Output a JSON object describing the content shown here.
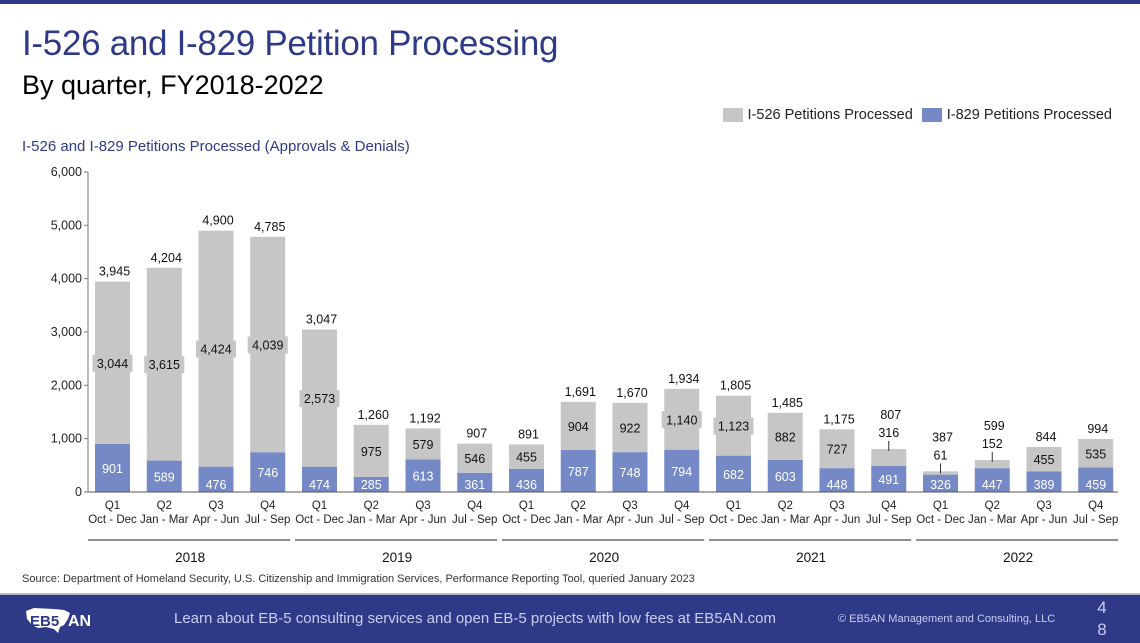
{
  "slide": {
    "title": "I-526 and I-829 Petition Processing",
    "subtitle": "By quarter, FY2018-2022",
    "source": "Source: Department of Homeland Security, U.S. Citizenship and Immigration Services, Performance Reporting Tool, queried January 2023",
    "footer_text": "Learn about EB-5 consulting services and open EB-5 projects with low fees at EB5AN.com",
    "copyright": "© EB5AN Management and Consulting, LLC",
    "logo_text": "EB5AN",
    "page_number_line1": "4",
    "page_number_line2": "8"
  },
  "colors": {
    "brand": "#2e3a87",
    "i526": "#c6c6c6",
    "i829": "#7689c7"
  },
  "chart_data": {
    "type": "bar",
    "stacked": true,
    "title": "I-526 and I-829 Petitions Processed (Approvals & Denials)",
    "xlabel": "",
    "ylabel": "",
    "ylim": [
      0,
      6000
    ],
    "yticks": [
      0,
      1000,
      2000,
      3000,
      4000,
      5000,
      6000
    ],
    "ytick_labels": [
      "0",
      "1,000",
      "2,000",
      "3,000",
      "4,000",
      "5,000",
      "6,000"
    ],
    "grid": false,
    "legend_position": "top-right",
    "quarters": [
      "Q1",
      "Q2",
      "Q3",
      "Q4"
    ],
    "quarter_months": [
      "Oct - Dec",
      "Jan - Mar",
      "Apr - Jun",
      "Jul - Sep"
    ],
    "years": [
      "2018",
      "2019",
      "2020",
      "2021",
      "2022"
    ],
    "categories": [
      "2018 Q1",
      "2018 Q2",
      "2018 Q3",
      "2018 Q4",
      "2019 Q1",
      "2019 Q2",
      "2019 Q3",
      "2019 Q4",
      "2020 Q1",
      "2020 Q2",
      "2020 Q3",
      "2020 Q4",
      "2021 Q1",
      "2021 Q2",
      "2021 Q3",
      "2021 Q4",
      "2022 Q1",
      "2022 Q2",
      "2022 Q3",
      "2022 Q4"
    ],
    "series": [
      {
        "name": "I-829 Petitions Processed",
        "values": [
          901,
          589,
          476,
          746,
          474,
          285,
          613,
          361,
          436,
          787,
          748,
          794,
          682,
          603,
          448,
          491,
          326,
          447,
          389,
          459
        ]
      },
      {
        "name": "I-526 Petitions Processed",
        "values": [
          3044,
          3615,
          4424,
          4039,
          2573,
          975,
          579,
          546,
          455,
          904,
          922,
          1140,
          1123,
          882,
          727,
          316,
          61,
          152,
          455,
          535
        ]
      }
    ],
    "totals": [
      3945,
      4204,
      4900,
      4785,
      3047,
      1260,
      1192,
      907,
      891,
      1691,
      1670,
      1934,
      1805,
      1485,
      1175,
      807,
      387,
      599,
      844,
      994
    ],
    "legend": [
      "I-526 Petitions Processed",
      "I-829 Petitions Processed"
    ]
  }
}
